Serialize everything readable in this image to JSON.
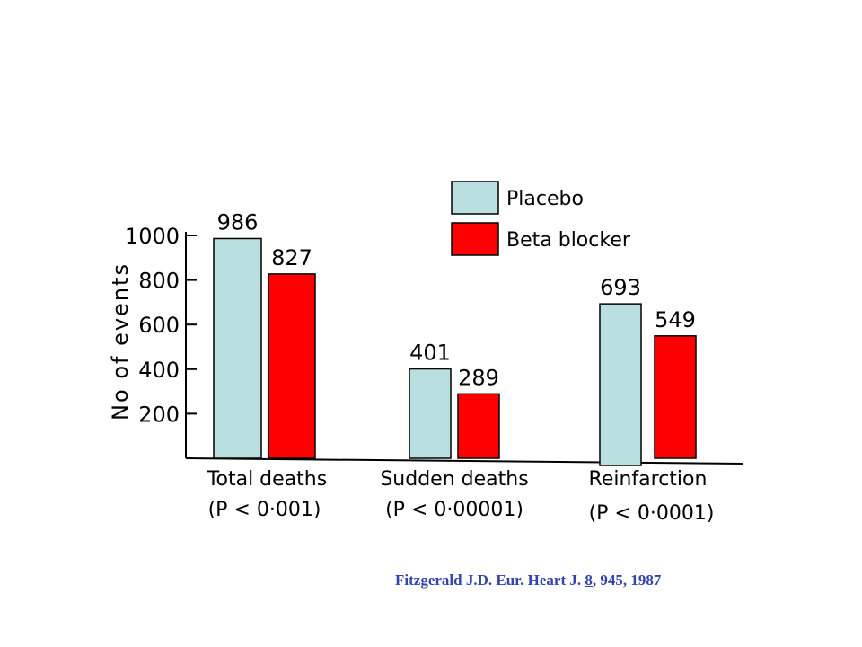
{
  "chart_data": {
    "type": "bar",
    "ylabel": "No of events",
    "ylim": [
      0,
      1000
    ],
    "yticks": [
      200,
      400,
      600,
      800,
      1000
    ],
    "categories": [
      "Total deaths",
      "Sudden deaths",
      "Reinfarction"
    ],
    "category_pvalues": [
      "(P < 0·001)",
      "(P < 0·00001)",
      "(P < 0·0001)"
    ],
    "series": [
      {
        "name": "Placebo",
        "values": [
          986,
          401,
          693
        ],
        "color": "#b9dfe1"
      },
      {
        "name": "Beta blocker",
        "values": [
          827,
          289,
          549
        ],
        "color": "#ff0000"
      }
    ],
    "legend_position": "top-right"
  },
  "citation": {
    "prefix": "Fitzgerald J.D. Eur. Heart J. ",
    "volume": "8",
    "suffix": ", 945, 1987"
  }
}
